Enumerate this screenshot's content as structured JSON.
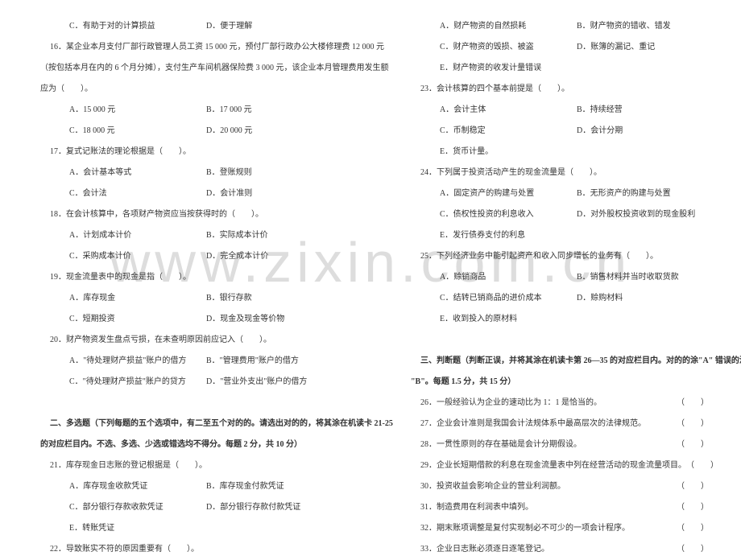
{
  "watermark": "www.zixin.com.cn",
  "left": {
    "l1a": "C．有助于对的计算损益",
    "l1b": "D．便于理解",
    "l2": "16．某企业本月支付厂部行政管理人员工资 15 000 元，预付厂部行政办公大楼修理费 12 000 元",
    "l3": "（按包括本月在内的 6 个月分摊），支付生产车间机器保险费 3 000 元，该企业本月管理费用发生额",
    "l4": "应为（　　）。",
    "l5a": "A．15 000 元",
    "l5b": "B．17 000 元",
    "l6a": "C．18 000 元",
    "l6b": "D．20 000 元",
    "l7": "17．复式记账法的理论根据是（　　）。",
    "l8a": "A．会计基本等式",
    "l8b": "B．登账规则",
    "l9a": "C．会计法",
    "l9b": "D．会计准则",
    "l10": "18．在会计核算中，各项财产物资应当按获得时的（　　）。",
    "l11a": "A．计划成本计价",
    "l11b": "B．实际成本计价",
    "l12a": "C．采购成本计价",
    "l12b": "D．完全成本计价",
    "l13": "19．现金流量表中的现金是指（　　）。",
    "l14a": "A．库存现金",
    "l14b": "B．银行存款",
    "l15a": "C．短期投资",
    "l15b": "D．现金及现金等价物",
    "l16": "20．财产物资发生盘点亏损，在未查明原因前应记入（　　）。",
    "l17a": "A．\"待处理财产损益\"账户的借方",
    "l17b": "B．\"管理费用\"账户的借方",
    "l18a": "C．\"待处理财产损益\"账户的贷方",
    "l18b": "D．\"营业外支出\"账户的借方",
    "l19": "二、多选题（下列每题的五个选项中，有二至五个对的的。请选出对的的，将其涂在机读卡 21-25",
    "l20": "的对应栏目内。不选、多选、少选或错选均不得分。每题 2 分，共 10 分）",
    "l21": "21．库存现金日志账的登记根据是（　　）。",
    "l22a": "A．库存现金收款凭证",
    "l22b": "B．库存现金付款凭证",
    "l23a": "C．部分银行存款收款凭证",
    "l23b": "D．部分银行存款付款凭证",
    "l24": "E．转账凭证",
    "l25": "22．导致账实不符的原因重要有（　　）。"
  },
  "right": {
    "r1a": "A．财产物资的自然损耗",
    "r1b": "B．财产物资的错收、错发",
    "r2a": "C．财产物资的毁损、被盗",
    "r2b": "D．账簿的漏记、重记",
    "r3": "E．财产物资的收发计量错误",
    "r4": "23．会计核算的四个基本前提是（　　）。",
    "r5a": "A．会计主体",
    "r5b": "B．持续经营",
    "r6a": "C．币制稳定",
    "r6b": "D．会计分期",
    "r7": "E．货币计量。",
    "r8": "24．下列属于投资活动产生的现金流量是（　　）。",
    "r9a": "A．固定资产的购建与处置",
    "r9b": "B．无形资产的购建与处置",
    "r10a": "C．债权性投资的利息收入",
    "r10b": "D．对外股权投资收到的现金股利",
    "r11": "E．发行债券支付的利息",
    "r12": "25．下列经济业务中能引起资产和收入同步增长的业务有（　　）。",
    "r13a": "A．赊销商品",
    "r13b": "B．销售材料并当时收取货款",
    "r14a": "C．结转已销商品的进价成本",
    "r14b": "D．赊购材料",
    "r15": "E．收到投入的原材料",
    "r16": "三、判断题（判断正误，并将其涂在机读卡第 26—35 的对应栏目内。对的的涂\"A\"  错误的涂",
    "r17": "\"B\"。每题 1.5 分，共 15 分）",
    "r18": "26．一般经验认为企业的速动比为 1：1 是恰当的。",
    "r18b": "（　　）",
    "r19": "27．企业会计准则是我国会计法规体系中最高层次的法律规范。",
    "r19b": "（　　）",
    "r20": "28．一贯性原则的存在基础是会计分期假设。",
    "r20b": "（　　）",
    "r21": "29．企业长短期借款的利息在现金流量表中列在经营活动的现金流量项目。",
    "r21b": "（　　）",
    "r22": "30．投资收益会影响企业的营业利润额。",
    "r22b": "（　　）",
    "r23": "31．制造费用在利润表中填列。",
    "r23b": "（　　）",
    "r24": "32．期末账项调整是复付实现制必不可少的一项会计程序。",
    "r24b": "（　　）",
    "r25": "33．企业日志账必须逐日逐笔登记。",
    "r25b": "（　　）"
  }
}
